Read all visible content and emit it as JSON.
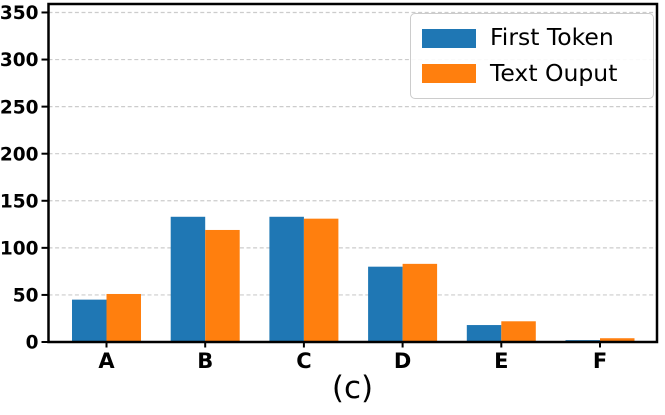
{
  "chart_data": {
    "type": "bar",
    "title": "",
    "caption": "(c)",
    "xlabel": "",
    "ylabel": "",
    "categories": [
      "A",
      "B",
      "C",
      "D",
      "E",
      "F"
    ],
    "series": [
      {
        "name": "First Token",
        "color": "#1f77b4",
        "values": [
          45,
          133,
          133,
          80,
          18,
          2
        ]
      },
      {
        "name": "Text Ouput",
        "color": "#ff7f0e",
        "values": [
          51,
          119,
          131,
          83,
          22,
          4
        ]
      }
    ],
    "ylim": [
      0,
      359
    ],
    "yticks": [
      0,
      50,
      100,
      150,
      200,
      250,
      300,
      350
    ],
    "grid": {
      "axis": "y",
      "style": "dashed",
      "color": "#cccccc"
    },
    "legend": {
      "position": "upper-right"
    },
    "axis_color": "#000000",
    "background": "#ffffff"
  }
}
